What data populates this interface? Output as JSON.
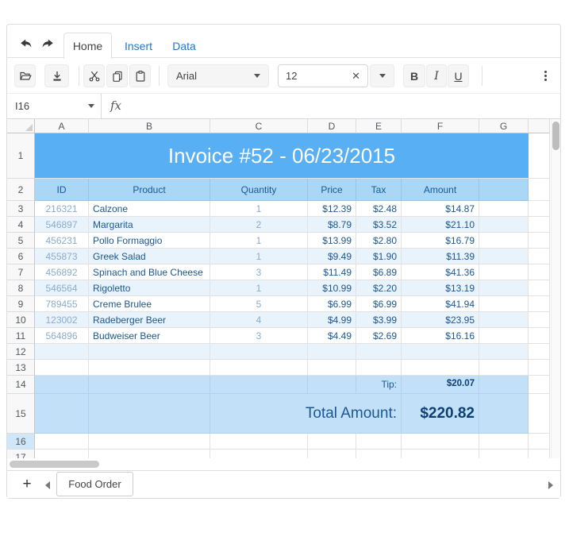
{
  "ribbon": {
    "tabs": [
      {
        "label": "Home",
        "active": true
      },
      {
        "label": "Insert",
        "active": false
      },
      {
        "label": "Data",
        "active": false
      }
    ]
  },
  "toolbar": {
    "font_name": "Arial",
    "font_size": "12",
    "bold_label": "B",
    "italic_label": "I",
    "underline_label": "U",
    "icons": [
      "undo-icon",
      "redo-icon",
      "open-icon",
      "export-icon",
      "cut-icon",
      "copy-icon",
      "paste-icon",
      "clear-icon",
      "dropdown-caret-icon",
      "overflow-menu-icon"
    ]
  },
  "formula_bar": {
    "cell_reference": "I16",
    "fx_label": "fx",
    "formula_value": ""
  },
  "grid": {
    "column_letters": [
      "A",
      "B",
      "C",
      "D",
      "E",
      "F",
      "G"
    ],
    "row_numbers": [
      "1",
      "2",
      "3",
      "4",
      "5",
      "6",
      "7",
      "8",
      "9",
      "10",
      "11",
      "12",
      "13",
      "14",
      "15",
      "16",
      "17"
    ],
    "selected_row": "16",
    "title": "Invoice #52 - 06/23/2015",
    "headers": [
      "ID",
      "Product",
      "Quantity",
      "Price",
      "Tax",
      "Amount"
    ],
    "items": [
      {
        "id": "216321",
        "product": "Calzone",
        "quantity": "1",
        "price": "$12.39",
        "tax": "$2.48",
        "amount": "$14.87"
      },
      {
        "id": "546897",
        "product": "Margarita",
        "quantity": "2",
        "price": "$8.79",
        "tax": "$3.52",
        "amount": "$21.10"
      },
      {
        "id": "456231",
        "product": "Pollo Formaggio",
        "quantity": "1",
        "price": "$13.99",
        "tax": "$2.80",
        "amount": "$16.79"
      },
      {
        "id": "455873",
        "product": "Greek Salad",
        "quantity": "1",
        "price": "$9.49",
        "tax": "$1.90",
        "amount": "$11.39"
      },
      {
        "id": "456892",
        "product": "Spinach and Blue Cheese",
        "quantity": "3",
        "price": "$11.49",
        "tax": "$6.89",
        "amount": "$41.36"
      },
      {
        "id": "546564",
        "product": "Rigoletto",
        "quantity": "1",
        "price": "$10.99",
        "tax": "$2.20",
        "amount": "$13.19"
      },
      {
        "id": "789455",
        "product": "Creme Brulee",
        "quantity": "5",
        "price": "$6.99",
        "tax": "$6.99",
        "amount": "$41.94"
      },
      {
        "id": "123002",
        "product": "Radeberger Beer",
        "quantity": "4",
        "price": "$4.99",
        "tax": "$3.99",
        "amount": "$23.95"
      },
      {
        "id": "564896",
        "product": "Budweiser Beer",
        "quantity": "3",
        "price": "$4.49",
        "tax": "$2.69",
        "amount": "$16.16"
      }
    ],
    "tip_label": "Tip:",
    "tip_value": "$20.07",
    "total_label": "Total Amount:",
    "total_value": "$220.82"
  },
  "sheet_bar": {
    "add_label": "+",
    "tab_label": "Food Order"
  },
  "colors": {
    "title_bg": "#58aff3",
    "header_bg": "#abd7f6",
    "band_bg": "#c2e1f8",
    "zebra_bg": "#e9f3fc",
    "accent_link": "#2276c9",
    "text_dark": "#1a5794",
    "text_muted": "#8aaccd",
    "text_strong": "#0d3e71"
  }
}
